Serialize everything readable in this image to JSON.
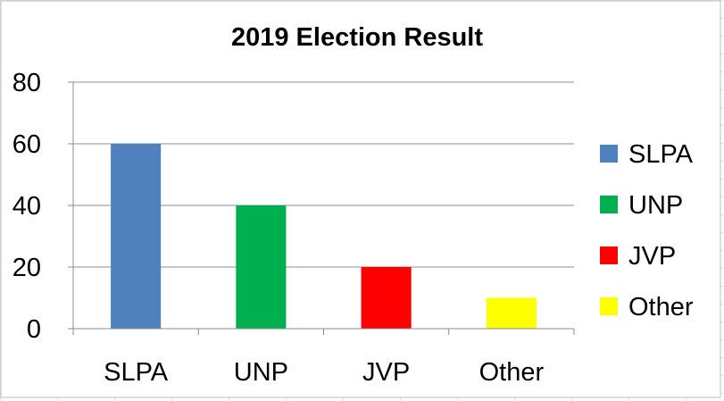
{
  "chart_data": {
    "type": "bar",
    "title": "2019 Election Result",
    "categories": [
      "SLPA",
      "UNP",
      "JVP",
      "Other"
    ],
    "values": [
      60,
      40,
      20,
      10
    ],
    "colors": [
      "#4f81bd",
      "#00b050",
      "#ff0000",
      "#ffff00"
    ],
    "yticks": [
      0,
      20,
      40,
      60,
      80
    ],
    "ylim": [
      0,
      80
    ],
    "xlabel": "",
    "ylabel": "",
    "grid": true,
    "legend_position": "right",
    "legend": [
      {
        "label": "SLPA",
        "color": "#4f81bd"
      },
      {
        "label": "UNP",
        "color": "#00b050"
      },
      {
        "label": "JVP",
        "color": "#ff0000"
      },
      {
        "label": "Other",
        "color": "#ffff00"
      }
    ]
  }
}
